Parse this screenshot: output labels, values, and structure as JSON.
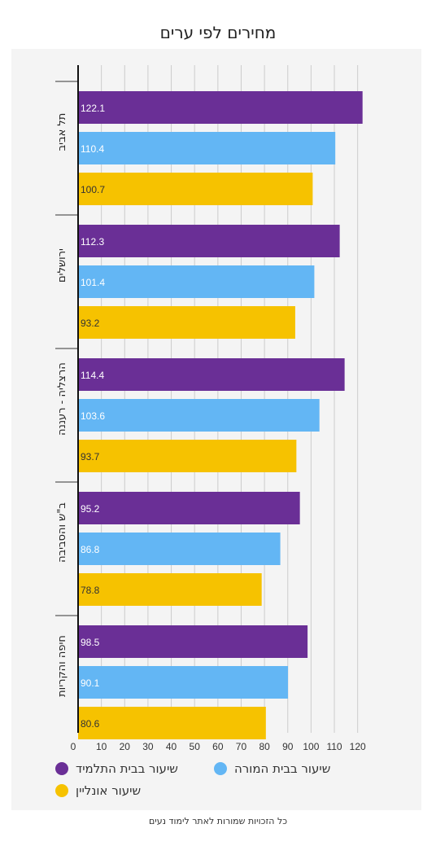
{
  "chart_data": {
    "type": "bar",
    "orientation": "horizontal",
    "title": "מחירים לפי ערים",
    "categories": [
      "תל אביב",
      "ירושלים",
      "הרצליה - רעננה",
      "ב\"ש והסביבה",
      "חיפה והקריות"
    ],
    "series": [
      {
        "name": "שיעור בבית התלמיד",
        "color": "#6a2f96",
        "values": [
          122.1,
          112.3,
          114.4,
          95.2,
          98.5
        ]
      },
      {
        "name": "שיעור בבית המורה",
        "color": "#63b6f4",
        "values": [
          110.4,
          101.4,
          103.6,
          86.8,
          90.1
        ]
      },
      {
        "name": "שיעור אונליין",
        "color": "#f6c200",
        "values": [
          100.7,
          93.2,
          93.7,
          78.8,
          80.6
        ]
      }
    ],
    "xlim": [
      0,
      120
    ],
    "xticks": [
      0,
      10,
      20,
      30,
      40,
      50,
      60,
      70,
      80,
      90,
      100,
      110,
      120
    ],
    "grid": true,
    "legend_position": "bottom"
  },
  "footer": "כל הזכויות שמורות לאתר לימוד נעים"
}
